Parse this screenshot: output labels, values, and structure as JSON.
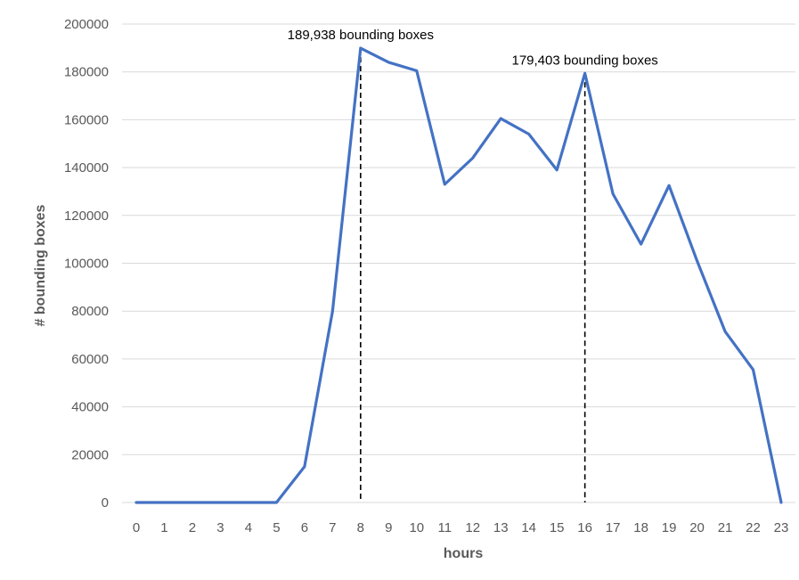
{
  "chart_data": {
    "type": "line",
    "title": "",
    "xlabel": "hours",
    "ylabel": "# bounding boxes",
    "ylim": [
      0,
      200000
    ],
    "yticks": [
      0,
      20000,
      40000,
      60000,
      80000,
      100000,
      120000,
      140000,
      160000,
      180000,
      200000
    ],
    "ytick_labels": [
      "0",
      "20000",
      "40000",
      "60000",
      "80000",
      "100000",
      "120000",
      "140000",
      "160000",
      "180000",
      "200000"
    ],
    "x": [
      0,
      1,
      2,
      3,
      4,
      5,
      6,
      7,
      8,
      9,
      10,
      11,
      12,
      13,
      14,
      15,
      16,
      17,
      18,
      19,
      20,
      21,
      22,
      23
    ],
    "x_labels": [
      "0",
      "1",
      "2",
      "3",
      "4",
      "5",
      "6",
      "7",
      "8",
      "9",
      "10",
      "11",
      "12",
      "13",
      "14",
      "15",
      "16",
      "17",
      "18",
      "19",
      "20",
      "21",
      "22",
      "23"
    ],
    "series": [
      {
        "values": [
          0,
          0,
          0,
          0,
          0,
          0,
          15000,
          80000,
          189938,
          184000,
          180500,
          133000,
          144000,
          160500,
          154000,
          139000,
          179403,
          129000,
          108000,
          132500,
          101000,
          71500,
          55500,
          0
        ],
        "color": "#4472c4"
      }
    ],
    "grid": "horizontal",
    "legend": "none",
    "annotations": [
      {
        "x": 8,
        "y": 189938,
        "text": "189,938 bounding boxes",
        "dashed_line": true
      },
      {
        "x": 16,
        "y": 179403,
        "text": "179,403 bounding boxes",
        "dashed_line": true
      }
    ]
  }
}
